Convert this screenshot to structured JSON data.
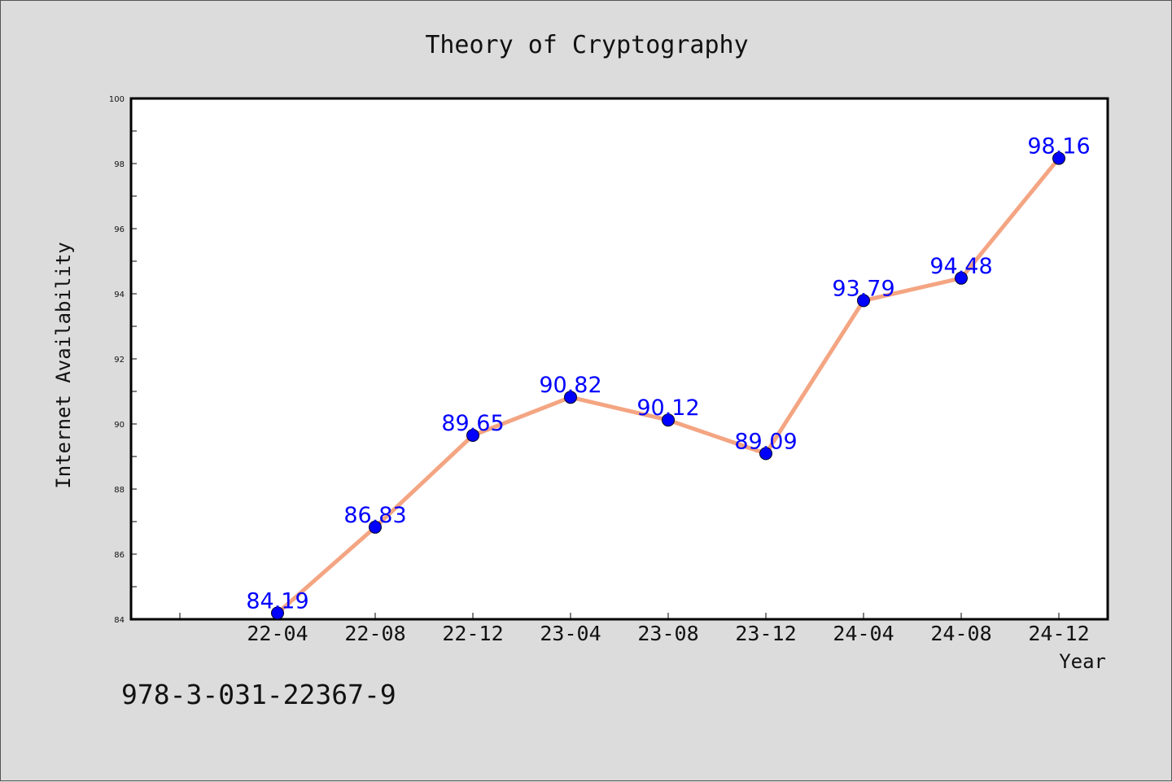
{
  "chart_data": {
    "type": "line",
    "title": "Theory of Cryptography",
    "xlabel": "Year",
    "ylabel": "Internet Availability",
    "categories": [
      "22-04",
      "22-08",
      "22-12",
      "23-04",
      "23-08",
      "23-12",
      "24-04",
      "24-08",
      "24-12"
    ],
    "series": [
      {
        "values": [
          84.19,
          86.83,
          89.65,
          90.82,
          90.12,
          89.09,
          93.79,
          94.48,
          98.16
        ],
        "labels": [
          "84.19",
          "86.83",
          "89.65",
          "90.82",
          "90.12",
          "89.09",
          "93.79",
          "94.48",
          "98.16"
        ]
      }
    ],
    "ylim": [
      84,
      100
    ],
    "yticks": [
      "84",
      "86",
      "88",
      "90",
      "92",
      "94",
      "96",
      "98",
      "100"
    ],
    "grid": false,
    "legend": "none",
    "colors": {
      "line": "#f4a582",
      "marker": "#0000ff",
      "label": "#0000ff",
      "background": "#dcdcdc",
      "plot_bg": "#ffffff"
    }
  },
  "annotation": "978-3-031-22367-9"
}
